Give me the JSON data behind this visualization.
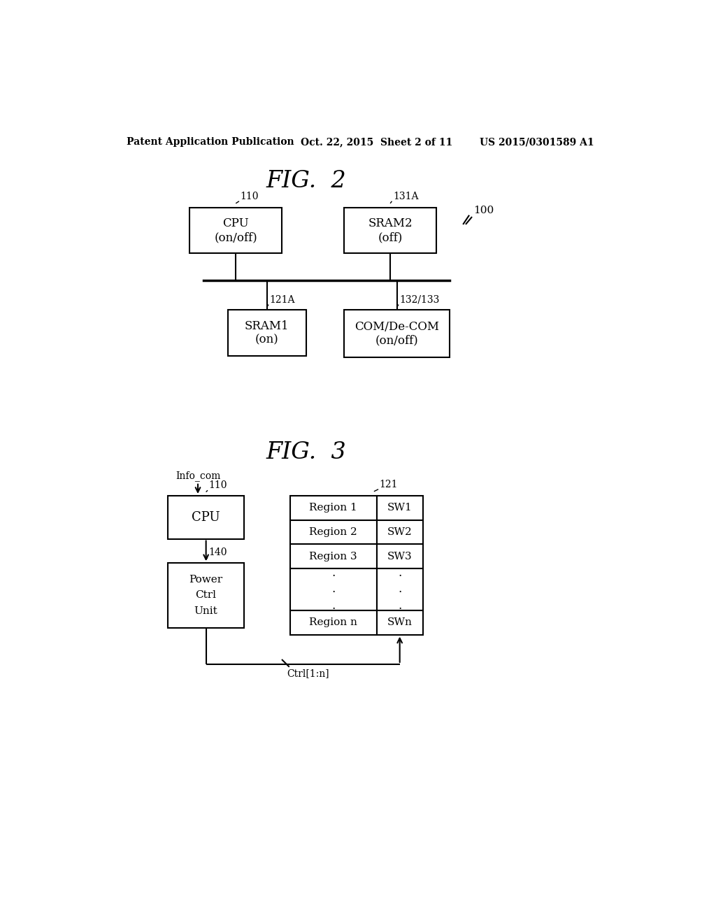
{
  "bg_color": "#ffffff",
  "header_text": "Patent Application Publication",
  "header_date": "Oct. 22, 2015  Sheet 2 of 11",
  "header_patent": "US 2015/0301589 A1",
  "fig2_title": "FIG.  2",
  "fig3_title": "FIG.  3",
  "fig2": {
    "ref100": "100",
    "cpu_label": "CPU\n(on/off)",
    "cpu_ref": "110",
    "sram2_label": "SRAM2\n(off)",
    "sram2_ref": "131A",
    "sram1_label": "SRAM1\n(on)",
    "sram1_ref": "121A",
    "com_label": "COM/De-COM\n(on/off)",
    "com_ref": "132/133"
  },
  "fig3": {
    "infocom_label": "Info_com",
    "cpu_label": "CPU",
    "cpu_ref": "110",
    "power_label": "Power\nCtrl\nUnit",
    "power_ref": "140",
    "sram_ref": "121",
    "rows": [
      [
        "Region 1",
        "SW1"
      ],
      [
        "Region 2",
        "SW2"
      ],
      [
        "Region 3",
        "SW3"
      ],
      [
        "...",
        "..."
      ],
      [
        "Region n",
        "SWn"
      ]
    ],
    "ctrl_label": "Ctrl[1:n]"
  }
}
